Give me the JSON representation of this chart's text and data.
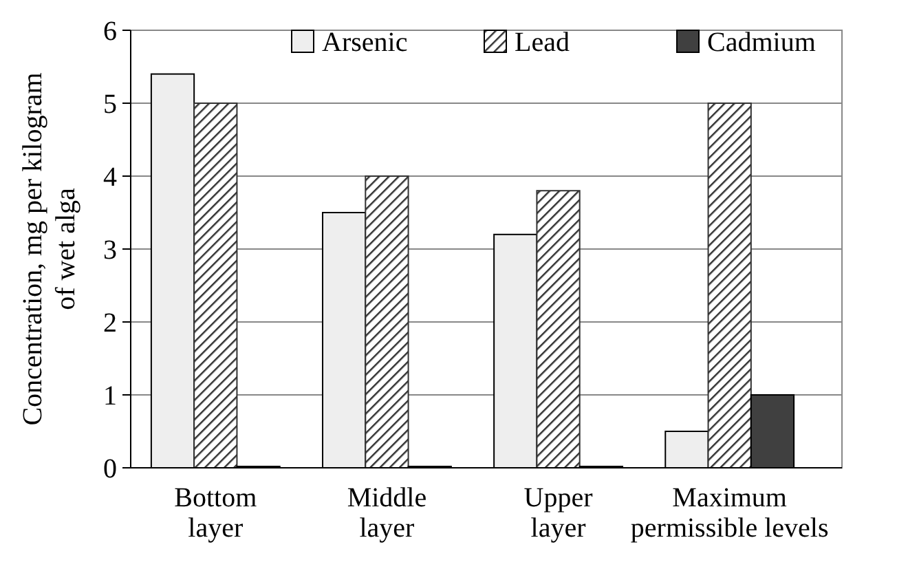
{
  "chart_data": {
    "type": "bar",
    "ylabel": "Concentration, mg per kilogram of wet alga",
    "categories": [
      "Bottom layer",
      "Middle layer",
      "Upper layer",
      "Maximum permissible levels"
    ],
    "series": [
      {
        "name": "Arsenic",
        "color": "#eeeeee",
        "values": [
          5.4,
          3.5,
          3.2,
          0.5
        ]
      },
      {
        "name": "Lead",
        "color": "#333333",
        "values": [
          5.0,
          4.0,
          3.8,
          5.0
        ]
      },
      {
        "name": "Cadmium",
        "color": "#404040",
        "values": [
          0,
          0,
          0,
          1.0
        ]
      }
    ],
    "ylim": [
      0,
      6
    ],
    "yticks": [
      0,
      1,
      2,
      3,
      4,
      5,
      6
    ],
    "grid": "y",
    "legend": "top right"
  }
}
